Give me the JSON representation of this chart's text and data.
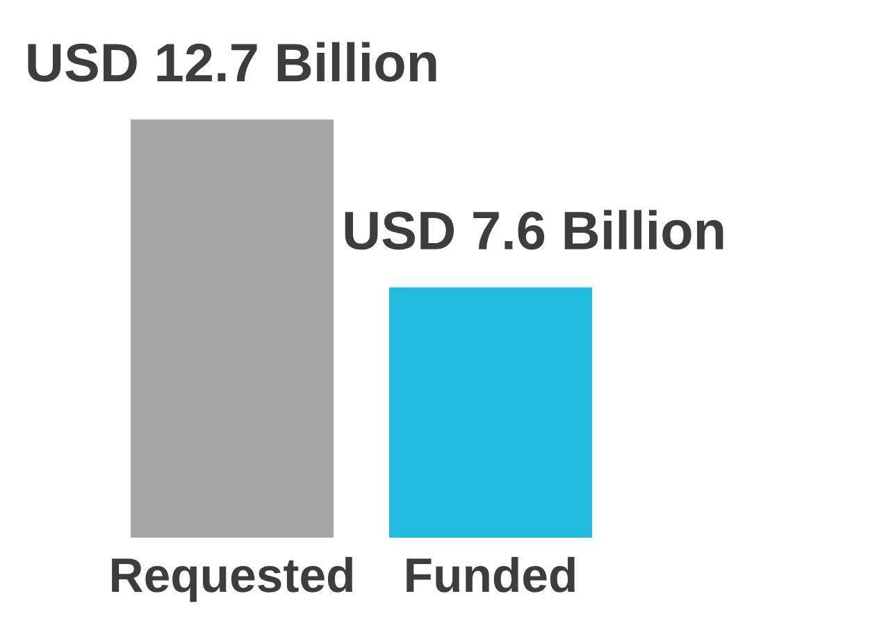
{
  "chart_data": {
    "type": "bar",
    "categories": [
      "Requested",
      "Funded"
    ],
    "values": [
      12.7,
      7.6
    ],
    "colors": [
      "#a6a6a6",
      "#22bce0"
    ],
    "value_labels": [
      "USD 12.7 Billion",
      "USD 7.6 Billion"
    ],
    "ylim": [
      0,
      12.7
    ],
    "grid": false,
    "legend": false
  }
}
